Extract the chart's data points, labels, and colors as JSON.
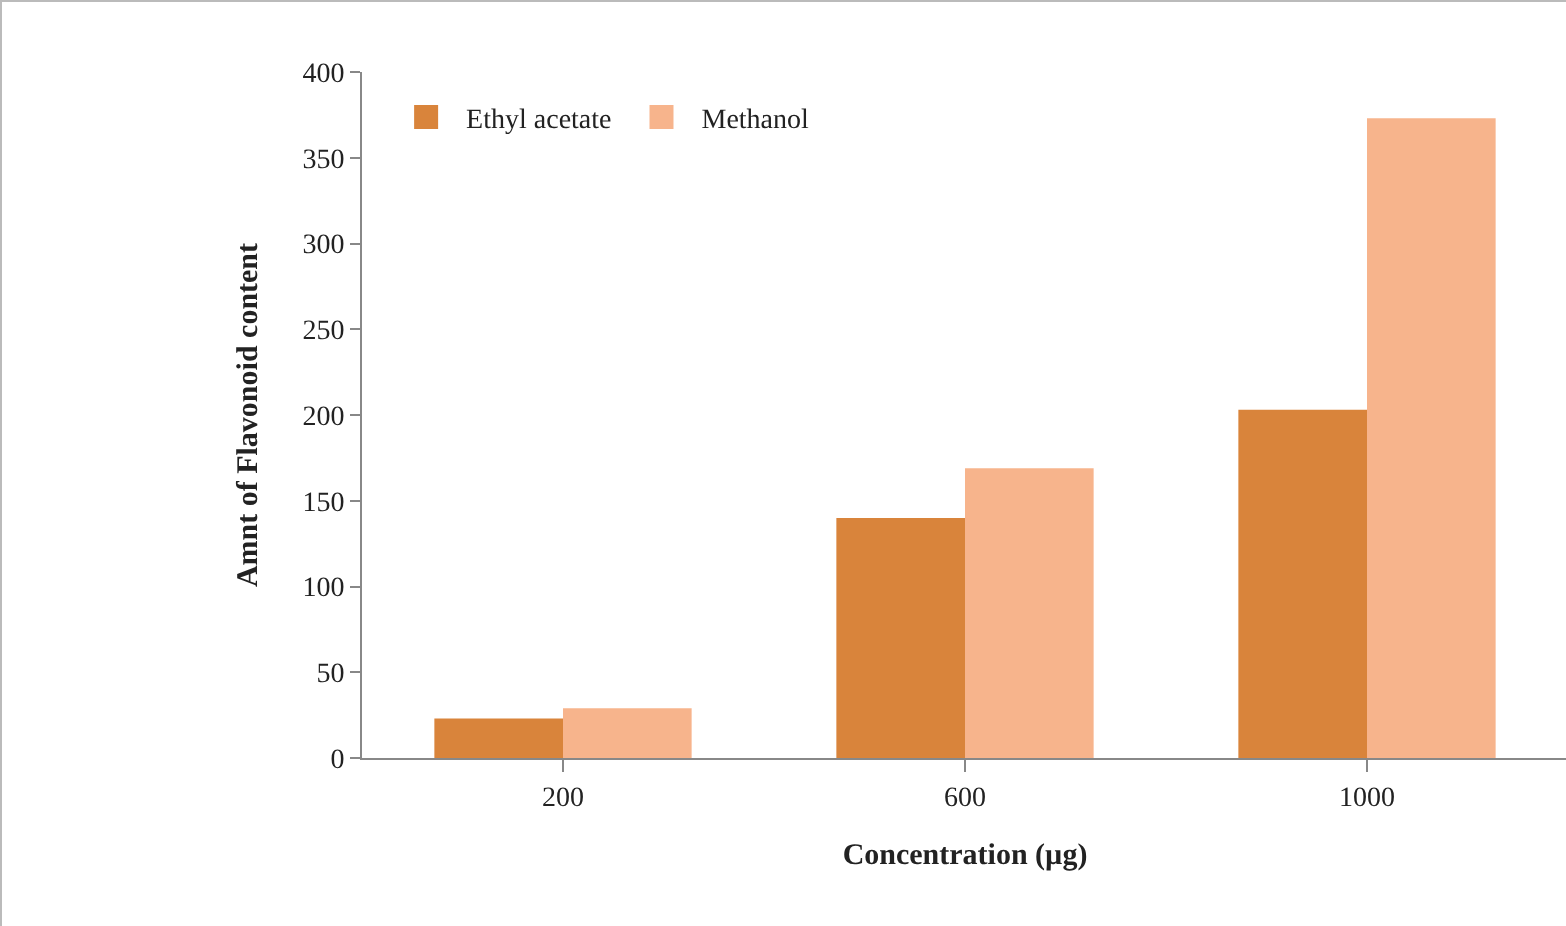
{
  "chart_data": {
    "type": "bar",
    "xlabel": "Concentration (µg)",
    "ylabel": "Amnt of Flavonoid content",
    "categories": [
      "200",
      "600",
      "1000"
    ],
    "series": [
      {
        "name": "Ethyl acetate",
        "color": "#d9843b",
        "values": [
          23,
          140,
          203
        ]
      },
      {
        "name": "Methanol",
        "color": "#f7b48c",
        "values": [
          29,
          169,
          373
        ]
      }
    ],
    "ylim": [
      0,
      400
    ],
    "yticks": [
      0,
      50,
      100,
      150,
      200,
      250,
      300,
      350,
      400
    ],
    "grid": false,
    "legend": "top left"
  }
}
